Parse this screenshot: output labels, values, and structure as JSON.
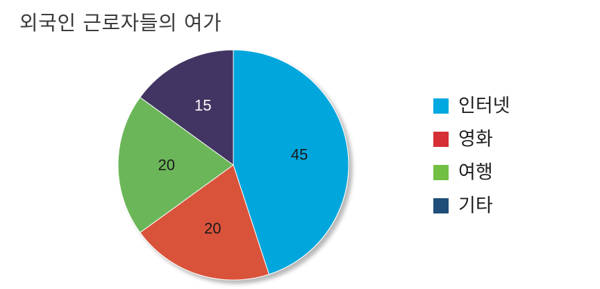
{
  "chart_data": {
    "type": "pie",
    "title": "외국인 근로자들의 여가",
    "categories": [
      "인터넷",
      "영화",
      "여행",
      "기타"
    ],
    "values": [
      45,
      20,
      20,
      15
    ],
    "colors": [
      "#00A6DC",
      "#D9533B",
      "#6CB65A",
      "#423663"
    ],
    "legend": {
      "position": "right",
      "items": [
        {
          "label": "인터넷",
          "color": "#00A9E0"
        },
        {
          "label": "영화",
          "color": "#D62F35"
        },
        {
          "label": "여행",
          "color": "#72BF44"
        },
        {
          "label": "기타",
          "color": "#1F4E79"
        }
      ]
    },
    "data_labels": [
      "45",
      "20",
      "20",
      "15"
    ]
  }
}
